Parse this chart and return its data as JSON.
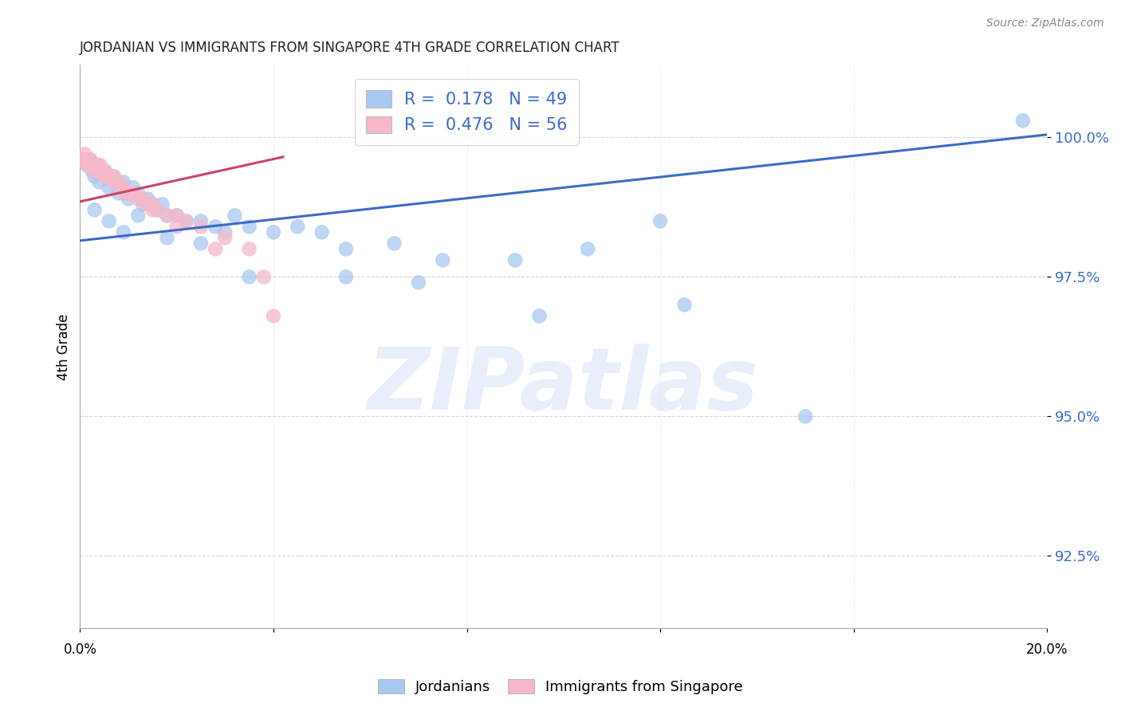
{
  "title": "JORDANIAN VS IMMIGRANTS FROM SINGAPORE 4TH GRADE CORRELATION CHART",
  "source": "Source: ZipAtlas.com",
  "ylabel": "4th Grade",
  "watermark": "ZIPatlas",
  "xlim": [
    0.0,
    20.0
  ],
  "ylim": [
    91.2,
    101.3
  ],
  "yticks": [
    92.5,
    95.0,
    97.5,
    100.0
  ],
  "ytick_labels": [
    "92.5%",
    "95.0%",
    "97.5%",
    "100.0%"
  ],
  "blue_R": 0.178,
  "blue_N": 49,
  "pink_R": 0.476,
  "pink_N": 56,
  "blue_color": "#a8c8f0",
  "pink_color": "#f5b8c8",
  "blue_line_color": "#3a6cc8",
  "pink_line_color": "#cc4466",
  "blue_scatter_x": [
    0.15,
    0.2,
    0.25,
    0.3,
    0.35,
    0.4,
    0.5,
    0.6,
    0.7,
    0.8,
    0.9,
    1.0,
    1.1,
    1.2,
    1.3,
    1.4,
    1.5,
    1.6,
    1.7,
    1.8,
    2.0,
    2.2,
    2.5,
    2.8,
    3.0,
    3.2,
    3.5,
    4.0,
    4.5,
    5.0,
    5.5,
    6.5,
    7.5,
    9.0,
    10.5,
    12.0,
    19.5,
    0.3,
    0.6,
    0.9,
    1.2,
    1.8,
    2.5,
    3.5,
    5.5,
    7.0,
    9.5,
    12.5,
    15.0
  ],
  "blue_scatter_y": [
    99.5,
    99.6,
    99.4,
    99.3,
    99.5,
    99.2,
    99.4,
    99.1,
    99.3,
    99.0,
    99.2,
    98.9,
    99.1,
    99.0,
    98.8,
    98.9,
    98.8,
    98.7,
    98.8,
    98.6,
    98.6,
    98.5,
    98.5,
    98.4,
    98.3,
    98.6,
    98.4,
    98.3,
    98.4,
    98.3,
    98.0,
    98.1,
    97.8,
    97.8,
    98.0,
    98.5,
    100.3,
    98.7,
    98.5,
    98.3,
    98.6,
    98.2,
    98.1,
    97.5,
    97.5,
    97.4,
    96.8,
    97.0,
    95.0
  ],
  "pink_scatter_x": [
    0.05,
    0.08,
    0.1,
    0.12,
    0.15,
    0.18,
    0.2,
    0.22,
    0.25,
    0.28,
    0.3,
    0.32,
    0.35,
    0.38,
    0.4,
    0.42,
    0.45,
    0.48,
    0.5,
    0.52,
    0.55,
    0.6,
    0.65,
    0.7,
    0.75,
    0.8,
    0.85,
    0.9,
    0.95,
    1.0,
    1.1,
    1.2,
    1.3,
    1.4,
    1.5,
    1.6,
    1.8,
    2.0,
    2.2,
    2.5,
    3.0,
    3.5,
    4.0,
    0.15,
    0.3,
    0.5,
    0.7,
    1.0,
    1.5,
    2.0,
    2.8,
    3.8,
    0.1,
    0.2,
    0.4,
    0.6
  ],
  "pink_scatter_y": [
    99.6,
    99.6,
    99.7,
    99.6,
    99.6,
    99.6,
    99.5,
    99.6,
    99.5,
    99.5,
    99.5,
    99.5,
    99.5,
    99.5,
    99.4,
    99.5,
    99.4,
    99.4,
    99.4,
    99.4,
    99.3,
    99.3,
    99.3,
    99.3,
    99.2,
    99.2,
    99.1,
    99.1,
    99.0,
    99.0,
    99.0,
    98.9,
    98.9,
    98.8,
    98.8,
    98.7,
    98.6,
    98.6,
    98.5,
    98.4,
    98.2,
    98.0,
    96.8,
    99.5,
    99.4,
    99.3,
    99.2,
    99.0,
    98.7,
    98.4,
    98.0,
    97.5,
    99.6,
    99.5,
    99.4,
    99.3
  ],
  "blue_line_x": [
    0.0,
    20.0
  ],
  "blue_line_y": [
    98.15,
    100.05
  ],
  "pink_line_x": [
    0.0,
    4.2
  ],
  "pink_line_y": [
    98.85,
    99.65
  ]
}
